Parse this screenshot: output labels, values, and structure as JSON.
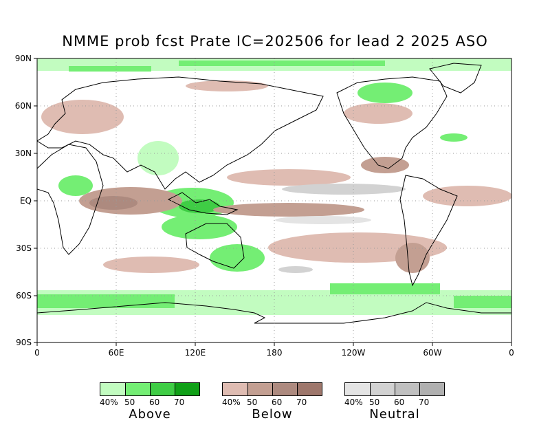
{
  "title": "NMME prob fcst Prate IC=202506 for lead 2 2025 ASO",
  "axes": {
    "y_labels": [
      "90N",
      "60N",
      "30N",
      "EQ",
      "30S",
      "60S",
      "90S"
    ],
    "x_labels": [
      "0",
      "60E",
      "120E",
      "180",
      "120W",
      "60W",
      "0"
    ]
  },
  "colors": {
    "ocean": "#ffffff",
    "land_outline": "#000000",
    "grid": "#9a9a9a"
  },
  "legends": [
    {
      "name": "Above",
      "ticks": [
        "40%",
        "50",
        "60",
        "70"
      ],
      "colors": [
        "#c2fcc0",
        "#74ee74",
        "#3fcd45",
        "#10a017"
      ]
    },
    {
      "name": "Below",
      "ticks": [
        "40%",
        "50",
        "60",
        "70"
      ],
      "colors": [
        "#dfbcb2",
        "#c39f92",
        "#ad8a7f",
        "#9e776c"
      ]
    },
    {
      "name": "Neutral",
      "ticks": [
        "40%",
        "50",
        "60",
        "70"
      ],
      "colors": [
        "#e4e4e4",
        "#d2d2d2",
        "#c0c0c0",
        "#b0b0b0"
      ]
    }
  ]
}
